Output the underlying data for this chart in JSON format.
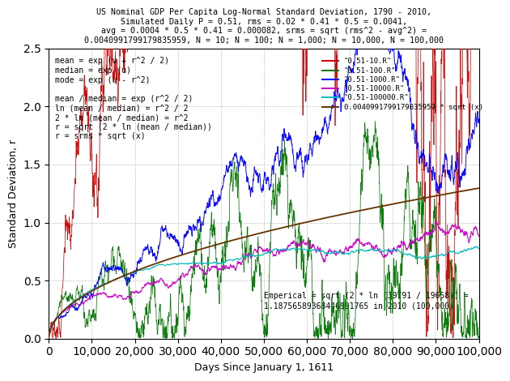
{
  "title_line1": "US Nominal GDP Per Capita Log-Normal Standard Deviation, 1790 - 2010,",
  "title_line2": "Simulated Daily P = 0.51, rms = 0.02 * 0.41 * 0.5 = 0.0041,",
  "title_line3": "avg = 0.0004 * 0.5 * 0.41 = 0.000082, srms = sqrt (rms^2 - avg^2) =",
  "title_line4": "0.0040991799179835959, N = 10; N = 100; N = 1,000; N = 10,000, N = 100,000",
  "xlabel": "Days Since January 1, 1611",
  "ylabel": "Standard Deviation, r",
  "xlim": [
    0,
    100000
  ],
  "ylim": [
    0,
    2.5
  ],
  "srms": 0.004099179917983596,
  "N_values": [
    10,
    100,
    1000,
    10000,
    100000
  ],
  "colors": {
    "N10": "#cc0000",
    "N100": "#007700",
    "N1000": "#0000ff",
    "N10000": "#cc00cc",
    "N100000": "#00bbbb",
    "sqrt_curve": "#663300"
  },
  "legend_labels": [
    "\"0.51-10.R\"",
    "\"0.51-100.R\"",
    "\"0.51-1000.R\"",
    "\"0.51-10000.R\"",
    "\"0.51-100000.R\"",
    "0.0040991799179835959 * sqrt (x)"
  ],
  "annotation_left": "mean = exp (u + r^2 / 2)\nmedian = exp (u)\nmode = exp (u - r^2)\n\nmean / median = exp (r^2 / 2)\nln (mean / median) = r^2 / 2\n2 * ln (mean / median) = r^2\nr = sqrt (2 * ln (mean / median))\nr = srms * sqrt (x)",
  "annotation_bottom": "Emperical = sqrt (2 * ln (39791 / 19658)) =\n1.18756589368446991765 in 2010 (100,000)",
  "background_color": "#ffffff",
  "grid_color": "#aaaaaa"
}
